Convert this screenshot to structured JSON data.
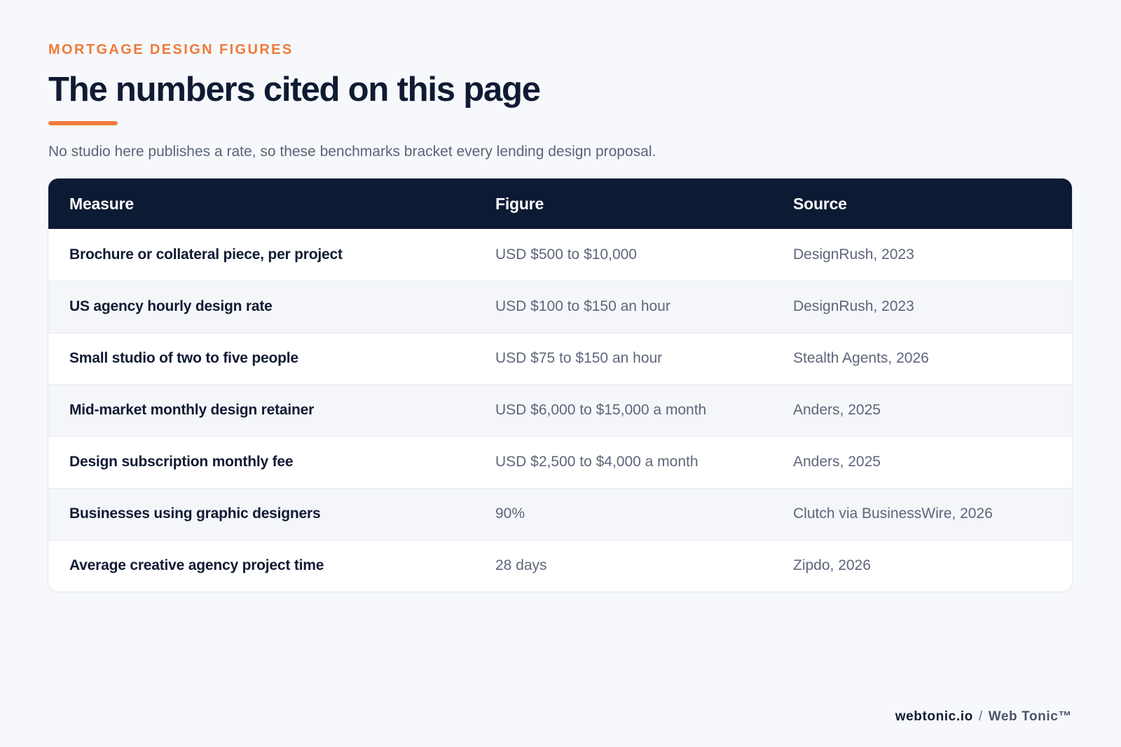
{
  "header": {
    "eyebrow": "MORTGAGE DESIGN FIGURES",
    "title": "The numbers cited on this page",
    "subtitle": "No studio here publishes a rate, so these benchmarks bracket every lending design proposal."
  },
  "table": {
    "columns": [
      "Measure",
      "Figure",
      "Source"
    ],
    "rows": [
      {
        "measure": "Brochure or collateral piece, per project",
        "figure": "USD $500 to $10,000",
        "source": "DesignRush, 2023"
      },
      {
        "measure": "US agency hourly design rate",
        "figure": "USD $100 to $150 an hour",
        "source": "DesignRush, 2023"
      },
      {
        "measure": "Small studio of two to five people",
        "figure": "USD $75 to $150 an hour",
        "source": "Stealth Agents, 2026"
      },
      {
        "measure": "Mid-market monthly design retainer",
        "figure": "USD $6,000 to $15,000 a month",
        "source": "Anders, 2025"
      },
      {
        "measure": "Design subscription monthly fee",
        "figure": "USD $2,500 to $4,000 a month",
        "source": "Anders, 2025"
      },
      {
        "measure": "Businesses using graphic designers",
        "figure": "90%",
        "source": "Clutch via BusinessWire, 2026"
      },
      {
        "measure": "Average creative agency project time",
        "figure": "28 days",
        "source": "Zipdo, 2026"
      }
    ]
  },
  "footer": {
    "domain": "webtonic.io",
    "separator": "/",
    "brand": "Web Tonic™"
  },
  "colors": {
    "accent": "#f07a3a",
    "header_bg": "#0d1a33",
    "page_bg": "#f6f8fb"
  }
}
